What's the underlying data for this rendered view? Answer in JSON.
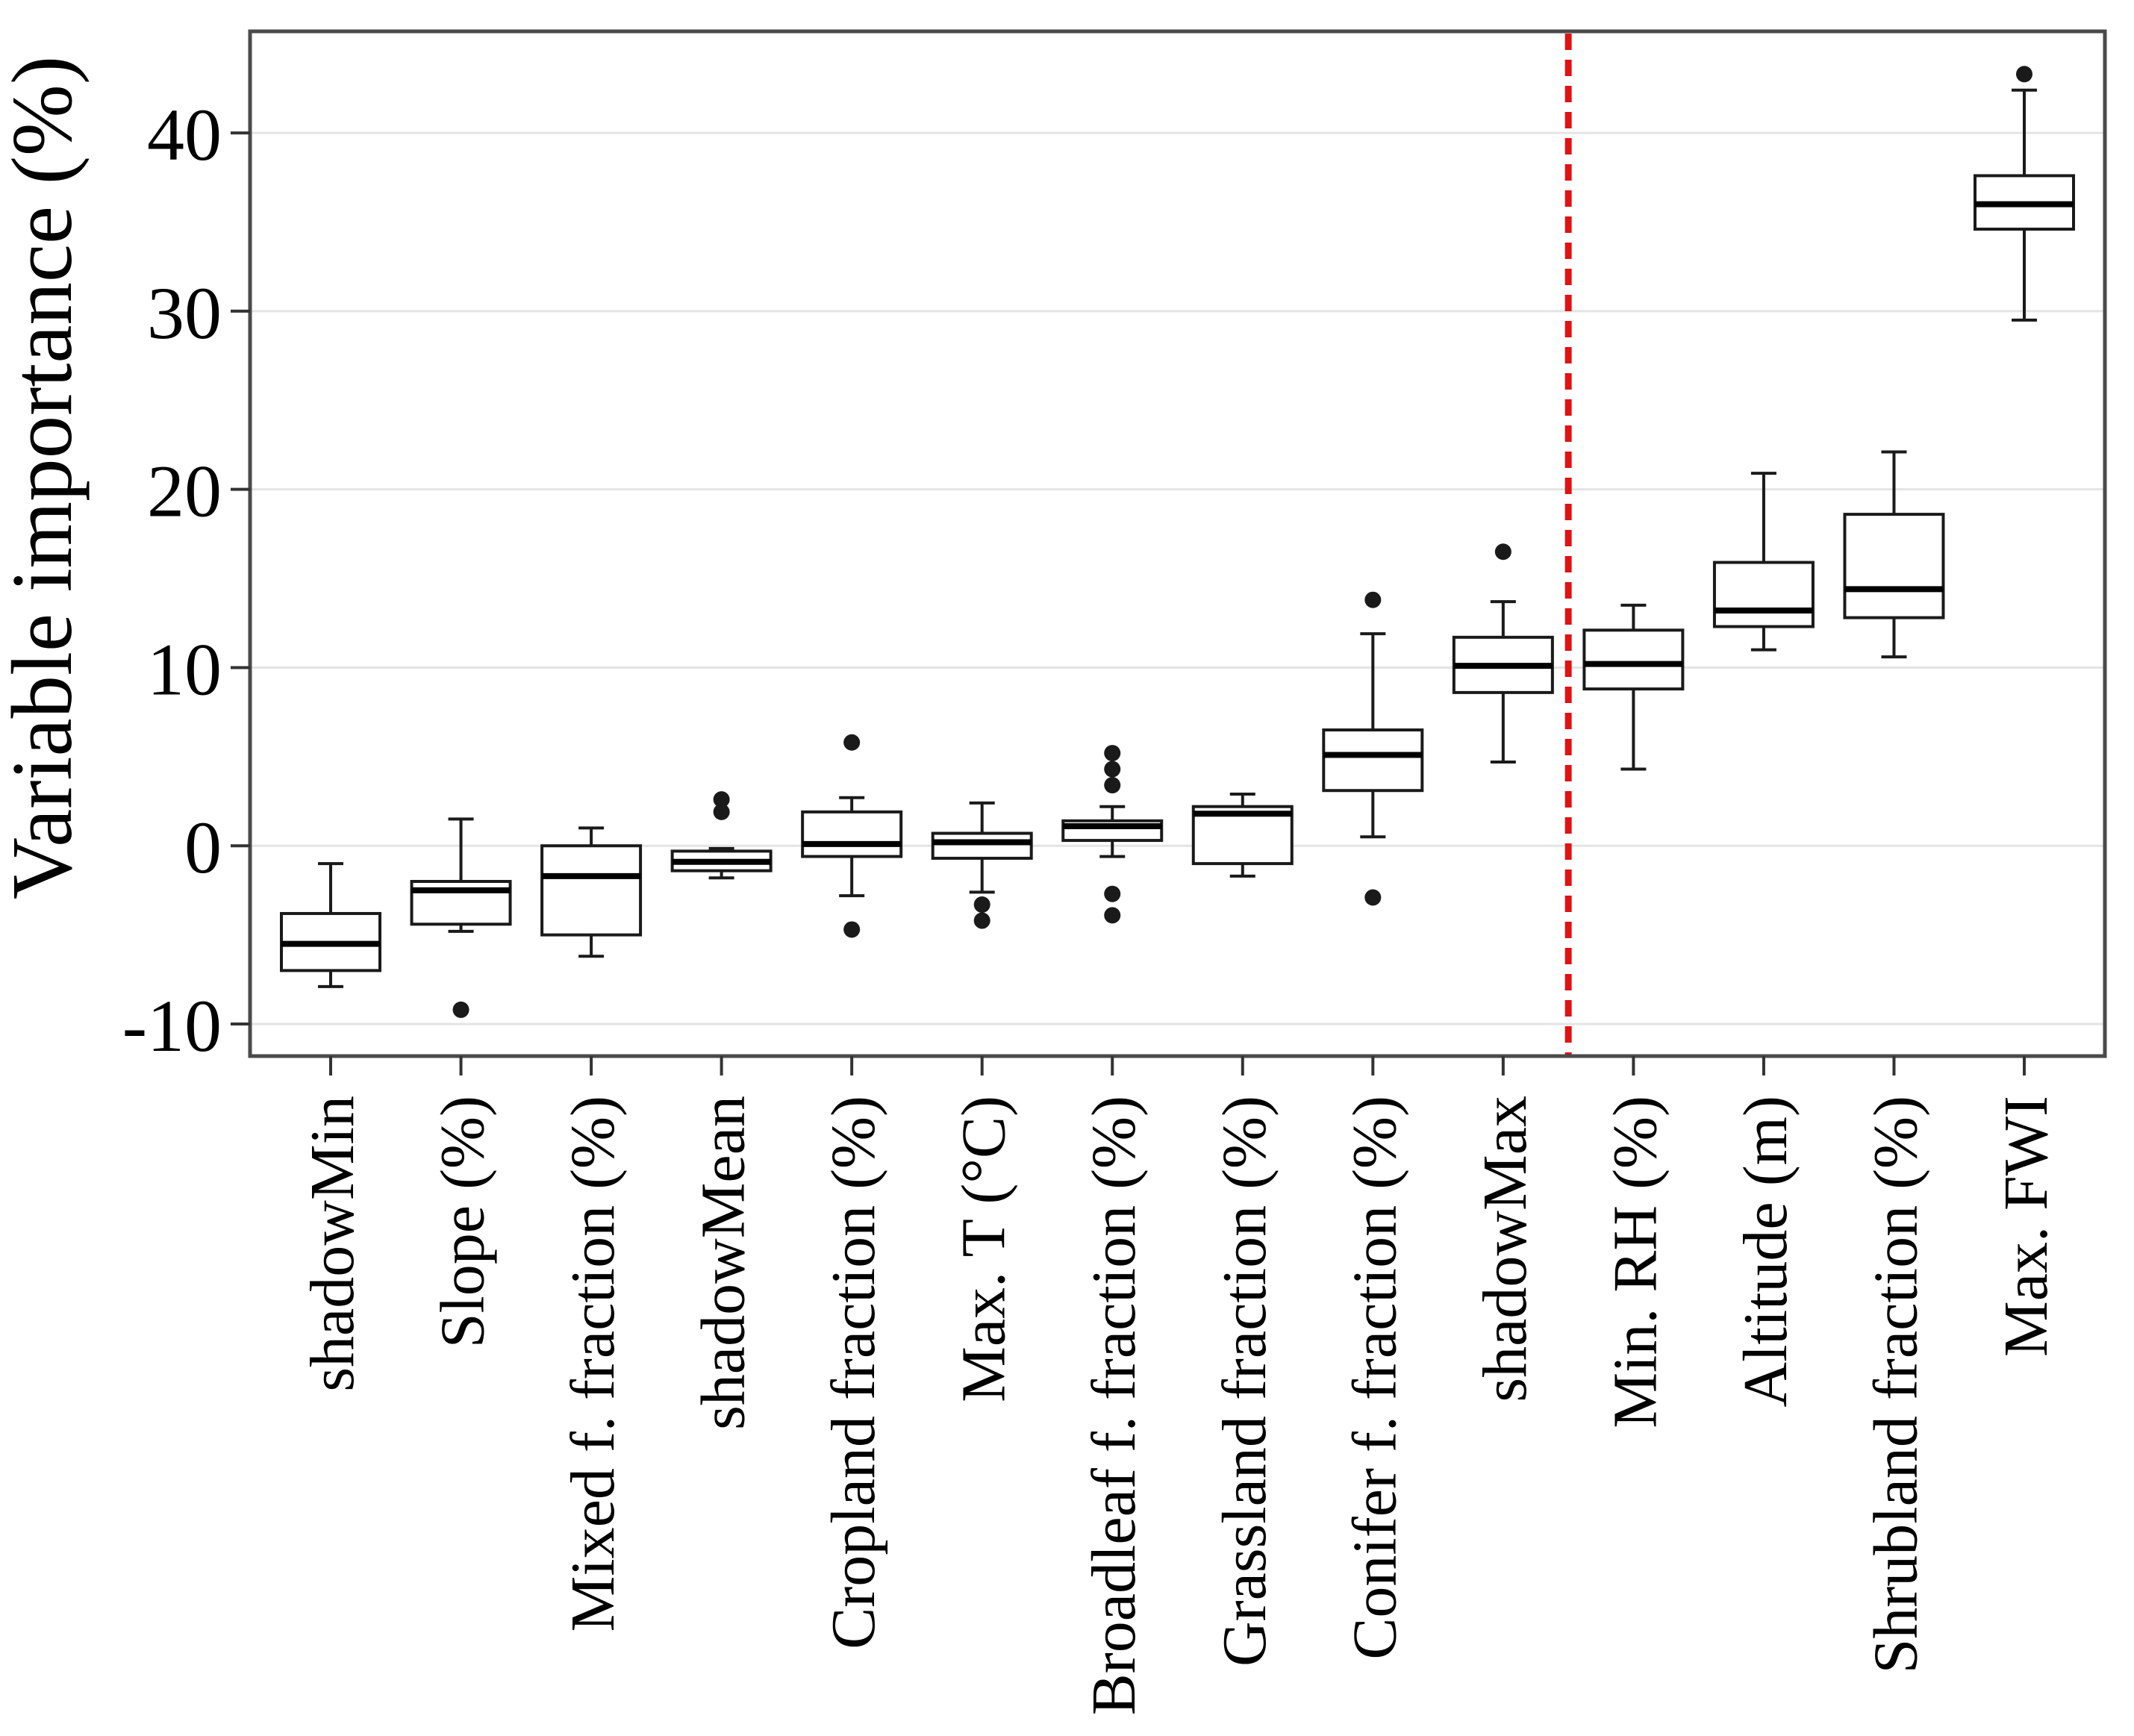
{
  "chart_data": {
    "type": "boxplot",
    "title": "",
    "xlabel": "",
    "ylabel": "Variable importance (%)",
    "ylim": [
      -11.8,
      45.7
    ],
    "yticks": [
      -10,
      0,
      10,
      20,
      30,
      40
    ],
    "grid": "horizontal-major-only",
    "legend": "none",
    "separator_line": {
      "style": "dashed-vertical",
      "color": "#e01212",
      "position_between": [
        "shadowMax",
        "Min. RH (%)"
      ],
      "x_index": 9.5
    },
    "colors": {
      "box_stroke": "#1a1a1a",
      "box_fill": "#ffffff",
      "median": "#000000",
      "outlier": "#1a1a1a",
      "gridline": "#e4e4e4",
      "frame": "#4a4a4a",
      "tick": "#333333",
      "accent_red": "#e01212",
      "background": "#ffffff"
    },
    "categories": [
      "shadowMin",
      "Slope (%)",
      "Mixed f. fraction (%)",
      "shadowMean",
      "Cropland fraction (%)",
      "Max. T (°C)",
      "Broadleaf f. fraction (%)",
      "Grassland fraction (%)",
      "Conifer f. fraction (%)",
      "shadowMax",
      "Min. RH (%)",
      "Altitude (m)",
      "Shrubland fraction (%)",
      "Max. FWI"
    ],
    "boxes": [
      {
        "label": "shadowMin",
        "whisker_low": -7.9,
        "q1": -7.0,
        "median": -5.5,
        "q3": -3.8,
        "whisker_high": -1.0,
        "outliers": []
      },
      {
        "label": "Slope (%)",
        "whisker_low": -4.8,
        "q1": -4.4,
        "median": -2.5,
        "q3": -2.0,
        "whisker_high": 1.5,
        "outliers": [
          -9.2
        ]
      },
      {
        "label": "Mixed f. fraction (%)",
        "whisker_low": -6.2,
        "q1": -5.0,
        "median": -1.7,
        "q3": 0.0,
        "whisker_high": 1.0,
        "outliers": []
      },
      {
        "label": "shadowMean",
        "whisker_low": -1.8,
        "q1": -1.4,
        "median": -0.9,
        "q3": -0.3,
        "whisker_high": -0.15,
        "outliers": [
          1.9,
          2.6
        ]
      },
      {
        "label": "Cropland fraction (%)",
        "whisker_low": -2.8,
        "q1": -0.6,
        "median": 0.1,
        "q3": 1.9,
        "whisker_high": 2.7,
        "outliers": [
          5.8,
          -4.7
        ]
      },
      {
        "label": "Max. T (°C)",
        "whisker_low": -2.6,
        "q1": -0.7,
        "median": 0.2,
        "q3": 0.7,
        "whisker_high": 2.4,
        "outliers": [
          -3.3,
          -4.2
        ]
      },
      {
        "label": "Broadleaf f. fraction (%)",
        "whisker_low": -0.6,
        "q1": 0.3,
        "median": 1.1,
        "q3": 1.4,
        "whisker_high": 2.2,
        "outliers": [
          5.2,
          4.3,
          3.4,
          -2.7,
          -3.9
        ]
      },
      {
        "label": "Grassland fraction (%)",
        "whisker_low": -1.7,
        "q1": -1.0,
        "median": 1.8,
        "q3": 2.2,
        "whisker_high": 2.9,
        "outliers": []
      },
      {
        "label": "Conifer f. fraction (%)",
        "whisker_low": 0.5,
        "q1": 3.1,
        "median": 5.1,
        "q3": 6.5,
        "whisker_high": 11.9,
        "outliers": [
          13.8,
          -2.9
        ]
      },
      {
        "label": "shadowMax",
        "whisker_low": 4.7,
        "q1": 8.6,
        "median": 10.1,
        "q3": 11.7,
        "whisker_high": 13.7,
        "outliers": [
          16.5
        ]
      },
      {
        "label": "Min. RH (%)",
        "whisker_low": 4.3,
        "q1": 8.8,
        "median": 10.2,
        "q3": 12.1,
        "whisker_high": 13.5,
        "outliers": []
      },
      {
        "label": "Altitude (m)",
        "whisker_low": 11.0,
        "q1": 12.3,
        "median": 13.2,
        "q3": 15.9,
        "whisker_high": 20.9,
        "outliers": []
      },
      {
        "label": "Shrubland fraction (%)",
        "whisker_low": 10.6,
        "q1": 12.8,
        "median": 14.4,
        "q3": 18.6,
        "whisker_high": 22.1,
        "outliers": []
      },
      {
        "label": "Max. FWI",
        "whisker_low": 29.5,
        "q1": 34.6,
        "median": 36.0,
        "q3": 37.6,
        "whisker_high": 42.4,
        "outliers": [
          43.3
        ]
      }
    ]
  }
}
